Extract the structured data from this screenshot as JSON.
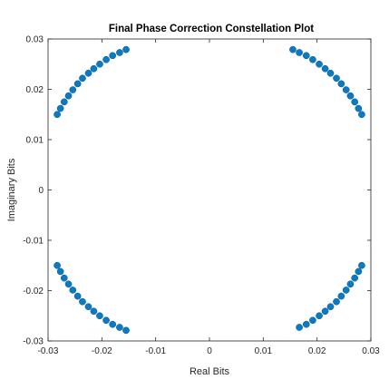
{
  "chart_data": {
    "type": "scatter",
    "title": "Final Phase Correction Constellation Plot",
    "xlabel": "Real Bits",
    "ylabel": "Imaginary Bits",
    "xlim": [
      -0.03,
      0.03
    ],
    "ylim": [
      -0.03,
      0.03
    ],
    "xticks": [
      -0.03,
      -0.02,
      -0.01,
      0,
      0.01,
      0.02,
      0.03
    ],
    "xtick_labels": [
      "-0.03",
      "-0.02",
      "-0.01",
      "0",
      "0.01",
      "0.02",
      "0.03"
    ],
    "yticks": [
      -0.03,
      -0.02,
      -0.01,
      0,
      0.01,
      0.02,
      0.03
    ],
    "ytick_labels": [
      "-0.03",
      "-0.02",
      "-0.01",
      "0",
      "0.01",
      "0.02",
      "0.03"
    ],
    "grid": false,
    "box": true,
    "marker": "filled-circle",
    "color": "#0072BD",
    "points": [
      [
        0.0155,
        0.0279
      ],
      [
        0.0167,
        0.0273
      ],
      [
        0.018,
        0.0267
      ],
      [
        0.0192,
        0.0259
      ],
      [
        0.0204,
        0.025
      ],
      [
        0.0215,
        0.0241
      ],
      [
        0.0225,
        0.0232
      ],
      [
        0.0236,
        0.0222
      ],
      [
        0.0245,
        0.0211
      ],
      [
        0.0254,
        0.0199
      ],
      [
        0.0262,
        0.0187
      ],
      [
        0.027,
        0.0175
      ],
      [
        0.0277,
        0.0162
      ],
      [
        0.0283,
        0.015
      ],
      [
        -0.0283,
        0.015
      ],
      [
        -0.0277,
        0.0162
      ],
      [
        -0.027,
        0.0175
      ],
      [
        -0.0262,
        0.0187
      ],
      [
        -0.0254,
        0.0199
      ],
      [
        -0.0245,
        0.0211
      ],
      [
        -0.0236,
        0.0222
      ],
      [
        -0.0225,
        0.0232
      ],
      [
        -0.0215,
        0.0241
      ],
      [
        -0.0204,
        0.025
      ],
      [
        -0.0192,
        0.0259
      ],
      [
        -0.018,
        0.0267
      ],
      [
        -0.0167,
        0.0273
      ],
      [
        -0.0155,
        0.0279
      ],
      [
        -0.0283,
        -0.015
      ],
      [
        -0.0277,
        -0.0162
      ],
      [
        -0.027,
        -0.0175
      ],
      [
        -0.0262,
        -0.0187
      ],
      [
        -0.0254,
        -0.0199
      ],
      [
        -0.0245,
        -0.0211
      ],
      [
        -0.0236,
        -0.0222
      ],
      [
        -0.0225,
        -0.0232
      ],
      [
        -0.0215,
        -0.0241
      ],
      [
        -0.0204,
        -0.025
      ],
      [
        -0.0192,
        -0.0259
      ],
      [
        -0.018,
        -0.0267
      ],
      [
        -0.0167,
        -0.0273
      ],
      [
        -0.0155,
        -0.0279
      ],
      [
        0.0167,
        -0.0273
      ],
      [
        0.018,
        -0.0267
      ],
      [
        0.0192,
        -0.0259
      ],
      [
        0.0204,
        -0.025
      ],
      [
        0.0215,
        -0.0241
      ],
      [
        0.0225,
        -0.0232
      ],
      [
        0.0236,
        -0.0222
      ],
      [
        0.0245,
        -0.0211
      ],
      [
        0.0254,
        -0.0199
      ],
      [
        0.0262,
        -0.0187
      ],
      [
        0.027,
        -0.0175
      ],
      [
        0.0277,
        -0.0162
      ],
      [
        0.0283,
        -0.015
      ]
    ]
  }
}
